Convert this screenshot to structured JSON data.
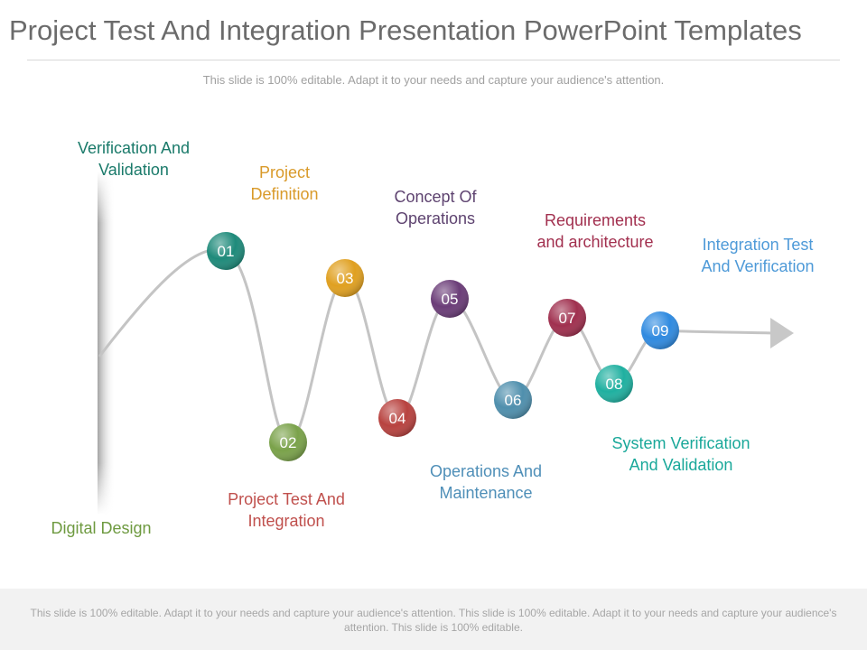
{
  "header": {
    "title": "Project Test And Integration Presentation PowerPoint Templates",
    "subtitle": "This slide is 100% editable. Adapt it to your needs and capture your audience's attention."
  },
  "stages": [
    {
      "number": "01",
      "label_lines": [
        "Verification And",
        "Validation"
      ],
      "color": "#1e8a7a"
    },
    {
      "number": "02",
      "label_lines": [
        "Project Test And",
        "Integration"
      ],
      "color": "#7aa24a"
    },
    {
      "number": "03",
      "label_lines": [
        "Project",
        "Definition"
      ],
      "color": "#e0a020"
    },
    {
      "number": "04",
      "label_lines": [
        "Project Test And",
        "Integration"
      ],
      "color": "#b8423f"
    },
    {
      "number": "05",
      "label_lines": [
        "Concept Of",
        "Operations"
      ],
      "color": "#6b3d78"
    },
    {
      "number": "06",
      "label_lines": [
        "Operations And",
        "Maintenance"
      ],
      "color": "#4f8fad"
    },
    {
      "number": "07",
      "label_lines": [
        "Requirements",
        "and architecture"
      ],
      "color": "#a0304f"
    },
    {
      "number": "08",
      "label_lines": [
        "System Verification",
        "And Validation"
      ],
      "color": "#1fb0a0"
    },
    {
      "number": "09",
      "label_lines": [
        "Integration Test",
        "And Verification"
      ],
      "color": "#2f8ae0"
    }
  ],
  "labels": {
    "digital_design": "Digital Design",
    "l01": [
      "Verification And",
      "Validation"
    ],
    "l03": [
      "Project",
      "Definition"
    ],
    "l05": [
      "Concept Of",
      "Operations"
    ],
    "l07": [
      "Requirements",
      "and architecture"
    ],
    "l09": [
      "Integration Test",
      "And Verification"
    ],
    "l02": [
      "Project Test And",
      "Integration"
    ],
    "l06": [
      "Operations And",
      "Maintenance"
    ],
    "l08": [
      "System Verification",
      "And Validation"
    ]
  },
  "colors": {
    "c01": "#1e8a7a",
    "c02": "#7aa24a",
    "c03": "#e0a020",
    "c04": "#b8423f",
    "c05": "#6b3d78",
    "c06": "#4f8fad",
    "c07": "#a0304f",
    "c08": "#1fb0a0",
    "c09": "#2f8ae0",
    "label_l01": "#1a7a6a",
    "label_l03": "#d99a2a",
    "label_l05": "#5e4370",
    "label_l07": "#a2304f",
    "label_l09": "#4e9ad8",
    "label_l02": "#c0504d",
    "label_l06": "#4f8fb8",
    "label_l08": "#1aa89a",
    "label_digital": "#6e9a40",
    "line": "#c4c4c4",
    "arrow": "#c8c8c8"
  },
  "footer": {
    "text": "This slide is 100% editable. Adapt it to your needs and capture your audience's attention. This slide is 100% editable. Adapt it to your needs and capture your audience's attention. This slide is 100% editable."
  }
}
